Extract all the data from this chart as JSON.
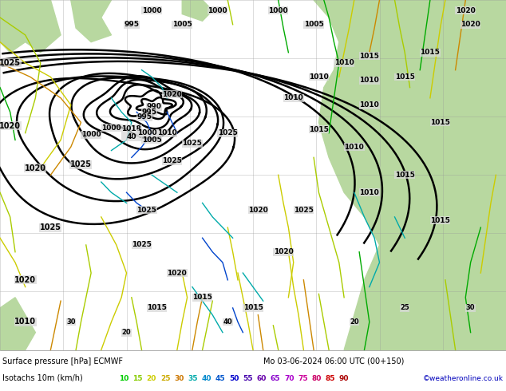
{
  "title_line1_left": "Surface pressure [hPa] ECMWF",
  "title_line1_right": "Mo 03-06-2024 06:00 UTC (00+150)",
  "title_line2": "Isotachs 10m (km/h)",
  "legend_values": [
    10,
    15,
    20,
    25,
    30,
    35,
    40,
    45,
    50,
    55,
    60,
    65,
    70,
    75,
    80,
    85,
    90
  ],
  "legend_colors": [
    "#00cc00",
    "#88cc00",
    "#cccc00",
    "#ccaa00",
    "#cc8800",
    "#00aaaa",
    "#0088cc",
    "#0055cc",
    "#0000cc",
    "#4400aa",
    "#6600aa",
    "#8800cc",
    "#aa00cc",
    "#cc00aa",
    "#cc0066",
    "#cc0000",
    "#aa0000"
  ],
  "credit": "©weatheronline.co.uk",
  "ocean_color": "#d8d8d8",
  "land_color": "#b8d8a0",
  "grid_color": "#999999",
  "contour_color": "#000000",
  "fig_width": 6.34,
  "fig_height": 4.9,
  "legend_bg": "#ffffff"
}
